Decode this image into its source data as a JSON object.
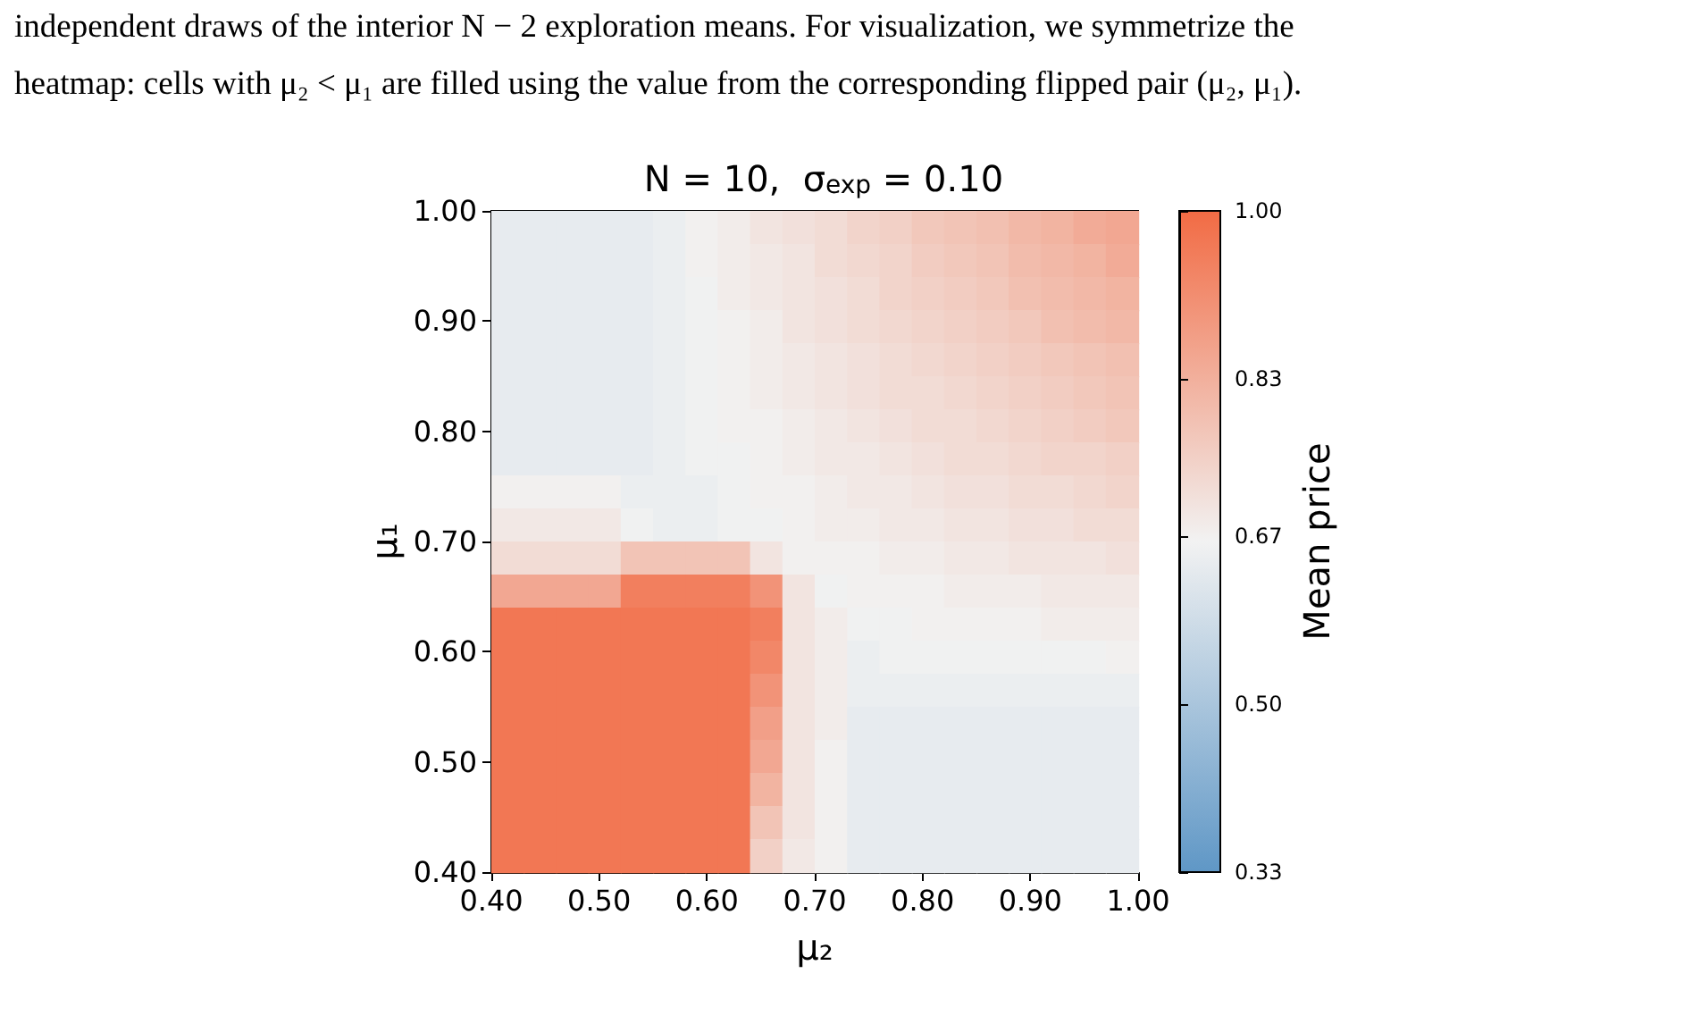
{
  "chart_data": {
    "type": "heatmap",
    "title": "N = 10,  σ$_{exp}$ = 0.10",
    "xlabel": "μ₂",
    "ylabel": "μ₁",
    "clabel": "Mean price",
    "annotations": [
      "independent draws of the interior N − 2 exploration means. For visualization, we symmetrize the",
      "heatmap: cells with μ₂ < μ₁ are filled using the value from the corresponding flipped pair (μ₂, μ₁)."
    ],
    "xlim": [
      0.4,
      1.0
    ],
    "ylim": [
      0.4,
      1.0
    ],
    "xticks": [
      {
        "value": 0.4,
        "label": "0.40"
      },
      {
        "value": 0.5,
        "label": "0.50"
      },
      {
        "value": 0.6,
        "label": "0.60"
      },
      {
        "value": 0.7,
        "label": "0.70"
      },
      {
        "value": 0.8,
        "label": "0.80"
      },
      {
        "value": 0.9,
        "label": "0.90"
      },
      {
        "value": 1.0,
        "label": "1.00"
      }
    ],
    "yticks": [
      {
        "value": 0.4,
        "label": "0.40"
      },
      {
        "value": 0.5,
        "label": "0.50"
      },
      {
        "value": 0.6,
        "label": "0.60"
      },
      {
        "value": 0.7,
        "label": "0.70"
      },
      {
        "value": 0.8,
        "label": "0.80"
      },
      {
        "value": 0.9,
        "label": "0.90"
      },
      {
        "value": 1.0,
        "label": "1.00"
      }
    ],
    "clim": [
      0.33,
      1.0
    ],
    "cticks": [
      {
        "value": 0.33,
        "label": "0.33"
      },
      {
        "value": 0.5,
        "label": "0.50"
      },
      {
        "value": 0.67,
        "label": "0.67"
      },
      {
        "value": 0.83,
        "label": "0.83"
      },
      {
        "value": 1.0,
        "label": "1.00"
      }
    ],
    "colors": [
      "#5f97c6",
      "#f2f2f2",
      "#f26b44"
    ],
    "cells": [
      [
        0.64,
        0.64,
        0.64,
        0.64,
        0.64,
        0.65,
        0.67,
        0.68,
        0.7,
        0.71,
        0.72,
        0.74,
        0.75,
        0.77,
        0.78,
        0.79,
        0.81,
        0.82,
        0.84,
        0.85
      ],
      [
        0.64,
        0.64,
        0.64,
        0.64,
        0.64,
        0.65,
        0.67,
        0.68,
        0.69,
        0.7,
        0.72,
        0.73,
        0.74,
        0.76,
        0.77,
        0.78,
        0.8,
        0.81,
        0.82,
        0.84
      ],
      [
        0.64,
        0.64,
        0.64,
        0.64,
        0.64,
        0.65,
        0.66,
        0.68,
        0.69,
        0.7,
        0.71,
        0.72,
        0.74,
        0.75,
        0.76,
        0.77,
        0.79,
        0.8,
        0.81,
        0.82
      ],
      [
        0.64,
        0.64,
        0.64,
        0.64,
        0.64,
        0.65,
        0.66,
        0.67,
        0.68,
        0.7,
        0.71,
        0.72,
        0.73,
        0.74,
        0.75,
        0.76,
        0.77,
        0.79,
        0.8,
        0.81
      ],
      [
        0.64,
        0.64,
        0.64,
        0.64,
        0.64,
        0.65,
        0.66,
        0.67,
        0.68,
        0.69,
        0.7,
        0.71,
        0.72,
        0.73,
        0.74,
        0.75,
        0.76,
        0.77,
        0.78,
        0.79
      ],
      [
        0.64,
        0.64,
        0.64,
        0.64,
        0.64,
        0.65,
        0.66,
        0.67,
        0.68,
        0.69,
        0.7,
        0.71,
        0.72,
        0.72,
        0.73,
        0.74,
        0.75,
        0.76,
        0.77,
        0.78
      ],
      [
        0.64,
        0.64,
        0.64,
        0.64,
        0.64,
        0.65,
        0.66,
        0.67,
        0.67,
        0.68,
        0.69,
        0.7,
        0.71,
        0.72,
        0.72,
        0.73,
        0.74,
        0.75,
        0.76,
        0.77
      ],
      [
        0.64,
        0.64,
        0.64,
        0.64,
        0.64,
        0.65,
        0.66,
        0.66,
        0.67,
        0.68,
        0.69,
        0.69,
        0.7,
        0.71,
        0.72,
        0.72,
        0.73,
        0.74,
        0.74,
        0.75
      ],
      [
        0.67,
        0.67,
        0.67,
        0.67,
        0.65,
        0.65,
        0.65,
        0.66,
        0.67,
        0.67,
        0.68,
        0.69,
        0.69,
        0.7,
        0.71,
        0.71,
        0.72,
        0.72,
        0.73,
        0.74
      ],
      [
        0.69,
        0.69,
        0.69,
        0.69,
        0.66,
        0.65,
        0.65,
        0.66,
        0.66,
        0.67,
        0.68,
        0.68,
        0.69,
        0.69,
        0.7,
        0.7,
        0.71,
        0.71,
        0.72,
        0.72
      ],
      [
        0.72,
        0.72,
        0.72,
        0.72,
        0.78,
        0.78,
        0.78,
        0.78,
        0.7,
        0.67,
        0.67,
        0.67,
        0.68,
        0.68,
        0.69,
        0.69,
        0.7,
        0.7,
        0.7,
        0.71
      ],
      [
        0.85,
        0.85,
        0.85,
        0.85,
        0.95,
        0.95,
        0.95,
        0.95,
        0.9,
        0.7,
        0.66,
        0.67,
        0.67,
        0.67,
        0.68,
        0.68,
        0.68,
        0.69,
        0.69,
        0.69
      ],
      [
        0.97,
        0.97,
        0.97,
        0.97,
        0.97,
        0.97,
        0.97,
        0.97,
        0.95,
        0.7,
        0.68,
        0.66,
        0.66,
        0.67,
        0.67,
        0.67,
        0.67,
        0.68,
        0.68,
        0.68
      ],
      [
        0.97,
        0.97,
        0.97,
        0.97,
        0.97,
        0.97,
        0.97,
        0.97,
        0.93,
        0.7,
        0.68,
        0.65,
        0.66,
        0.66,
        0.66,
        0.66,
        0.66,
        0.66,
        0.66,
        0.67
      ],
      [
        0.97,
        0.97,
        0.97,
        0.97,
        0.97,
        0.97,
        0.97,
        0.97,
        0.9,
        0.7,
        0.68,
        0.65,
        0.65,
        0.65,
        0.65,
        0.65,
        0.65,
        0.65,
        0.65,
        0.65
      ],
      [
        0.97,
        0.97,
        0.97,
        0.97,
        0.97,
        0.97,
        0.97,
        0.97,
        0.87,
        0.7,
        0.68,
        0.64,
        0.64,
        0.64,
        0.64,
        0.64,
        0.64,
        0.64,
        0.64,
        0.64
      ],
      [
        0.97,
        0.97,
        0.97,
        0.97,
        0.97,
        0.97,
        0.97,
        0.97,
        0.85,
        0.7,
        0.67,
        0.64,
        0.64,
        0.64,
        0.64,
        0.64,
        0.64,
        0.64,
        0.64,
        0.64
      ],
      [
        0.97,
        0.97,
        0.97,
        0.97,
        0.97,
        0.97,
        0.97,
        0.97,
        0.82,
        0.7,
        0.67,
        0.64,
        0.64,
        0.64,
        0.64,
        0.64,
        0.64,
        0.64,
        0.64,
        0.64
      ],
      [
        0.97,
        0.97,
        0.97,
        0.97,
        0.97,
        0.97,
        0.97,
        0.97,
        0.78,
        0.7,
        0.67,
        0.64,
        0.64,
        0.64,
        0.64,
        0.64,
        0.64,
        0.64,
        0.64,
        0.64
      ],
      [
        0.97,
        0.97,
        0.97,
        0.97,
        0.97,
        0.97,
        0.97,
        0.97,
        0.75,
        0.69,
        0.67,
        0.64,
        0.64,
        0.64,
        0.64,
        0.64,
        0.64,
        0.64,
        0.64,
        0.64
      ]
    ]
  }
}
